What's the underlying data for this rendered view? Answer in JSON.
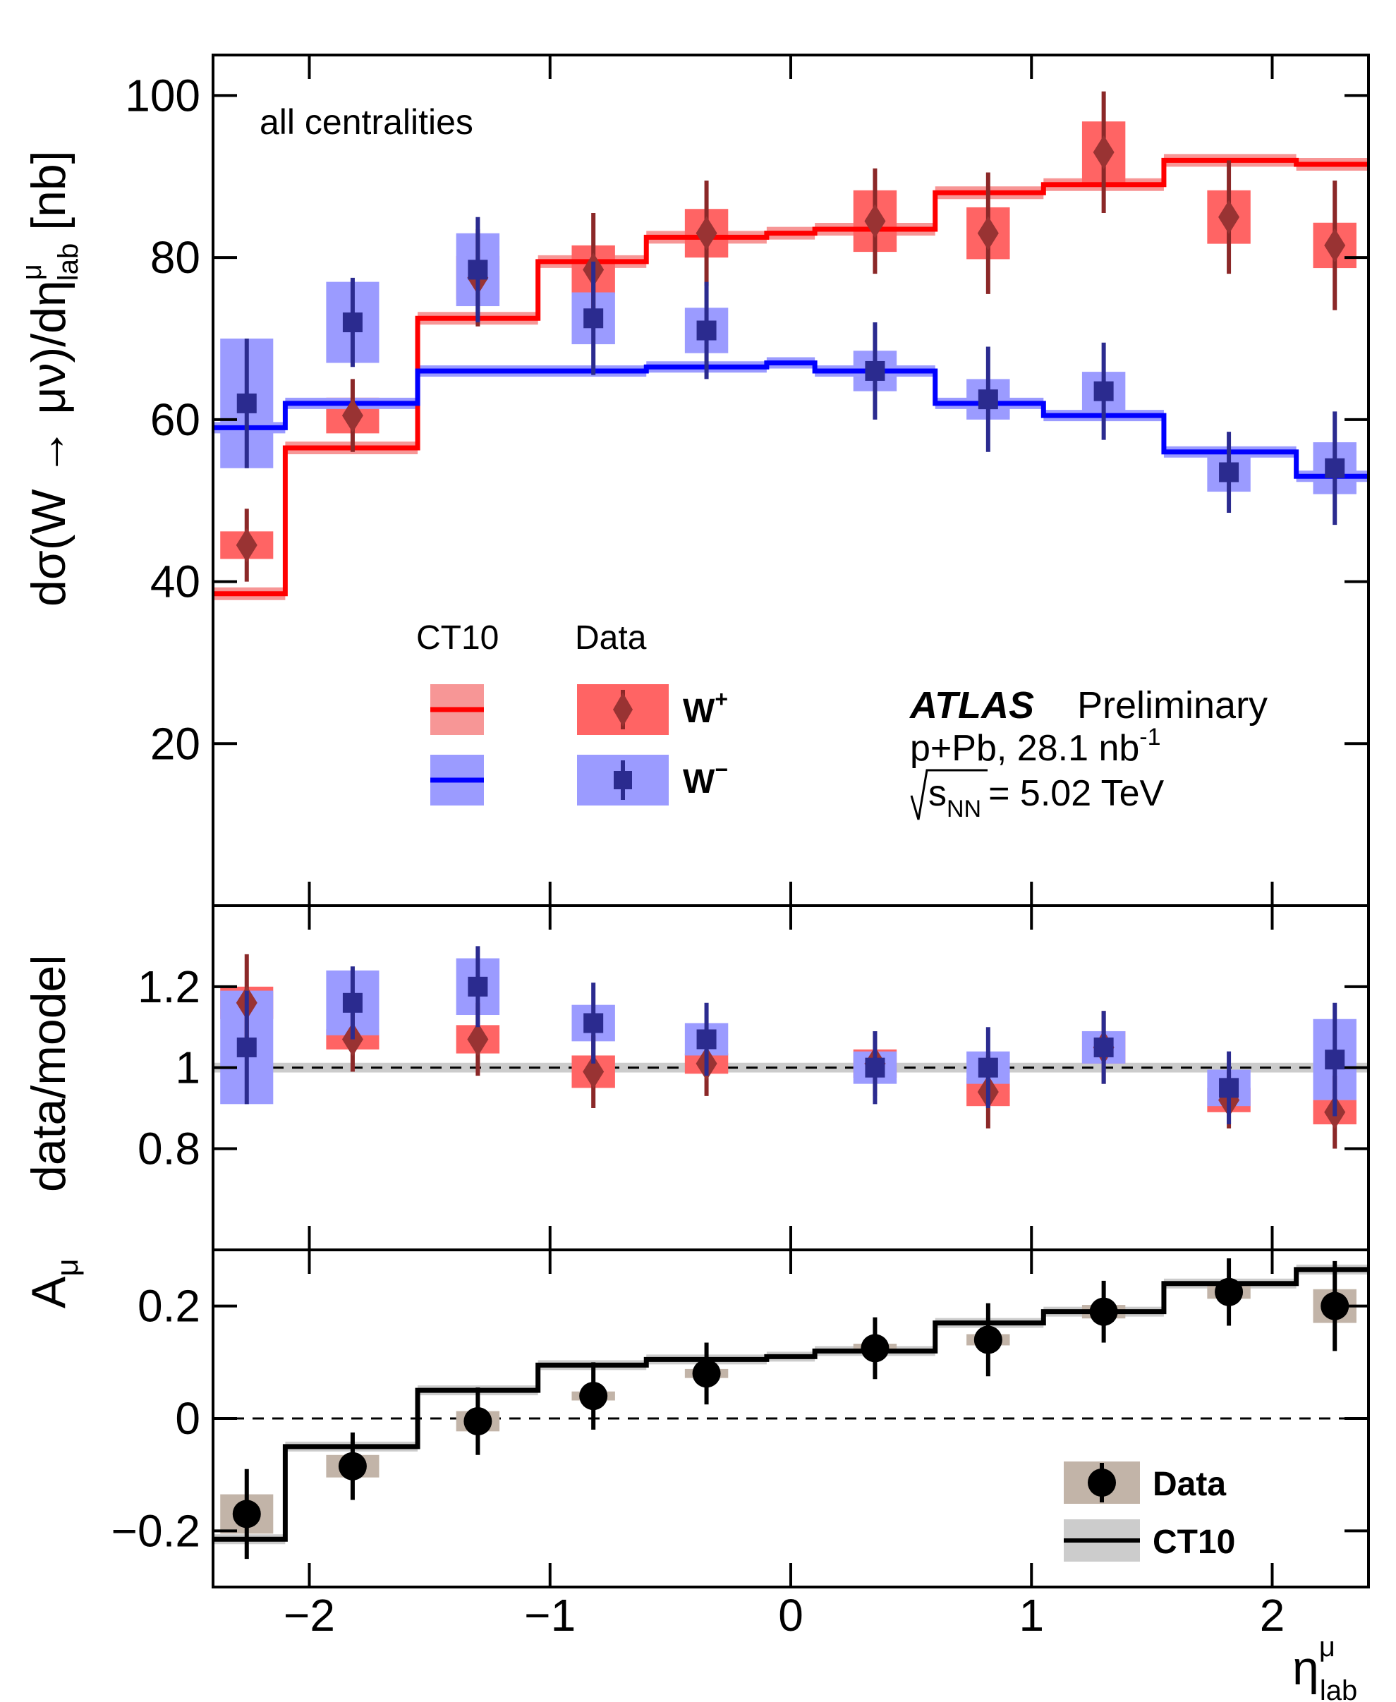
{
  "chart_data": {
    "type": "scatter",
    "x_label": "η",
    "x_label_sup": "μ",
    "x_label_sub": "lab",
    "xlim": [
      -2.4,
      2.4
    ],
    "x_ticks": [
      -2,
      -1,
      0,
      1,
      2
    ],
    "x_tick_labels": [
      "−2",
      "−1",
      "0",
      "1",
      "2"
    ],
    "x_centers": [
      -2.26,
      -1.82,
      -1.3,
      -0.82,
      -0.35,
      0.35,
      0.82,
      1.3,
      1.82,
      2.26
    ],
    "bin_edges": [
      -2.4,
      -2.1,
      -1.55,
      -1.05,
      -0.6,
      -0.1,
      0.1,
      0.6,
      1.05,
      1.55,
      2.1,
      2.4
    ],
    "panels": {
      "main": {
        "ylabel": "dσ(W → μν)/dη",
        "ylabel_sup": "μ",
        "ylabel_sub": "lab",
        "ylabel_unit": "[nb]",
        "ylim": [
          0,
          105
        ],
        "y_ticks": [
          20,
          40,
          60,
          80,
          100
        ],
        "y_tick_labels": [
          "20",
          "40",
          "60",
          "80",
          "100"
        ],
        "annotation": "all centralities",
        "wplus_data": {
          "y": [
            44.5,
            60.5,
            77.5,
            78.5,
            83,
            84.5,
            83,
            93,
            85,
            81.5
          ],
          "stat": [
            4.5,
            4.5,
            6,
            7,
            6.5,
            6.5,
            7.5,
            7.5,
            7,
            8
          ],
          "sys": [
            1.7,
            2.2,
            2.7,
            3,
            3,
            3.8,
            3.2,
            3.8,
            3.3,
            2.8
          ]
        },
        "wminus_data": {
          "y": [
            62,
            72,
            78.5,
            72.5,
            71,
            66,
            62.5,
            63.5,
            53.5,
            54
          ],
          "stat": [
            8,
            5.5,
            6.5,
            7,
            6,
            6,
            6.5,
            6,
            5,
            7
          ],
          "sys": [
            8,
            5,
            4.5,
            3.2,
            2.8,
            2.5,
            2.5,
            2.4,
            2.4,
            3.2
          ]
        },
        "wplus_ct10": [
          38.5,
          56.5,
          72.5,
          79.5,
          82.5,
          83,
          83.5,
          88,
          89,
          92,
          91.5
        ],
        "wminus_ct10": [
          59,
          62,
          66,
          66,
          66.5,
          67,
          66,
          62,
          60.5,
          56,
          53
        ]
      },
      "ratio": {
        "ylabel": "data/model",
        "ylim": [
          0.55,
          1.4
        ],
        "y_ticks": [
          0.8,
          1.0,
          1.2
        ],
        "y_tick_labels": [
          "0.8",
          "1",
          "1.2"
        ],
        "wplus": {
          "y": [
            1.16,
            1.07,
            1.07,
            0.99,
            1.01,
            1.01,
            0.94,
            1.05,
            0.92,
            0.89
          ],
          "stat": [
            0.12,
            0.08,
            0.09,
            0.09,
            0.08,
            0.08,
            0.09,
            0.09,
            0.07,
            0.09
          ],
          "sys": [
            0.04,
            0.025,
            0.035,
            0.04,
            0.025,
            0.035,
            0.035,
            0.04,
            0.03,
            0.03
          ]
        },
        "wminus": {
          "y": [
            1.05,
            1.16,
            1.2,
            1.11,
            1.07,
            1.0,
            1.0,
            1.05,
            0.95,
            1.02
          ],
          "stat": [
            0.14,
            0.09,
            0.1,
            0.1,
            0.09,
            0.09,
            0.1,
            0.09,
            0.09,
            0.14
          ],
          "sys": [
            0.14,
            0.08,
            0.07,
            0.045,
            0.04,
            0.04,
            0.04,
            0.04,
            0.045,
            0.1
          ]
        }
      },
      "asym": {
        "ylabel": "A",
        "ylabel_sub": "μ",
        "ylim": [
          -0.3,
          0.3
        ],
        "y_ticks": [
          -0.2,
          0,
          0.2
        ],
        "y_tick_labels": [
          "−0.2",
          "0",
          "0.2"
        ],
        "data": {
          "y": [
            -0.17,
            -0.085,
            -0.005,
            0.04,
            0.08,
            0.125,
            0.14,
            0.19,
            0.225,
            0.2
          ],
          "stat": [
            0.08,
            0.06,
            0.06,
            0.06,
            0.055,
            0.055,
            0.065,
            0.055,
            0.06,
            0.08
          ],
          "sys": [
            0.035,
            0.02,
            0.018,
            0.008,
            0.008,
            0.008,
            0.01,
            0.012,
            0.012,
            0.03
          ]
        },
        "ct10": [
          -0.215,
          -0.05,
          0.05,
          0.095,
          0.105,
          0.11,
          0.12,
          0.17,
          0.19,
          0.24,
          0.265
        ]
      }
    },
    "legend_main": {
      "ct10_header": "CT10",
      "data_header": "Data",
      "wplus_label": "W",
      "wplus_sup": "+",
      "wminus_label": "W",
      "wminus_sup": "−",
      "experiment": "ATLAS",
      "status": "Preliminary",
      "dataset": "p+Pb, 28.1 nb",
      "dataset_sup": "-1",
      "energy_sub": "NN",
      "energy": "= 5.02 TeV",
      "energy_s": "s"
    },
    "legend_asym": {
      "data_label": "Data",
      "ct10_label": "CT10"
    }
  },
  "colors": {
    "red_line": "#ff0000",
    "red_band": "#f79696",
    "red_box": "#ff6464",
    "red_marker": "#993333",
    "red_err": "#8b2828",
    "blue_line": "#0000ff",
    "blue_box": "#9b9bff",
    "blue_marker": "#2b2b8f",
    "black": "#000000",
    "grey_band": "#cccccc",
    "tan_box": "#c2b4a8"
  }
}
